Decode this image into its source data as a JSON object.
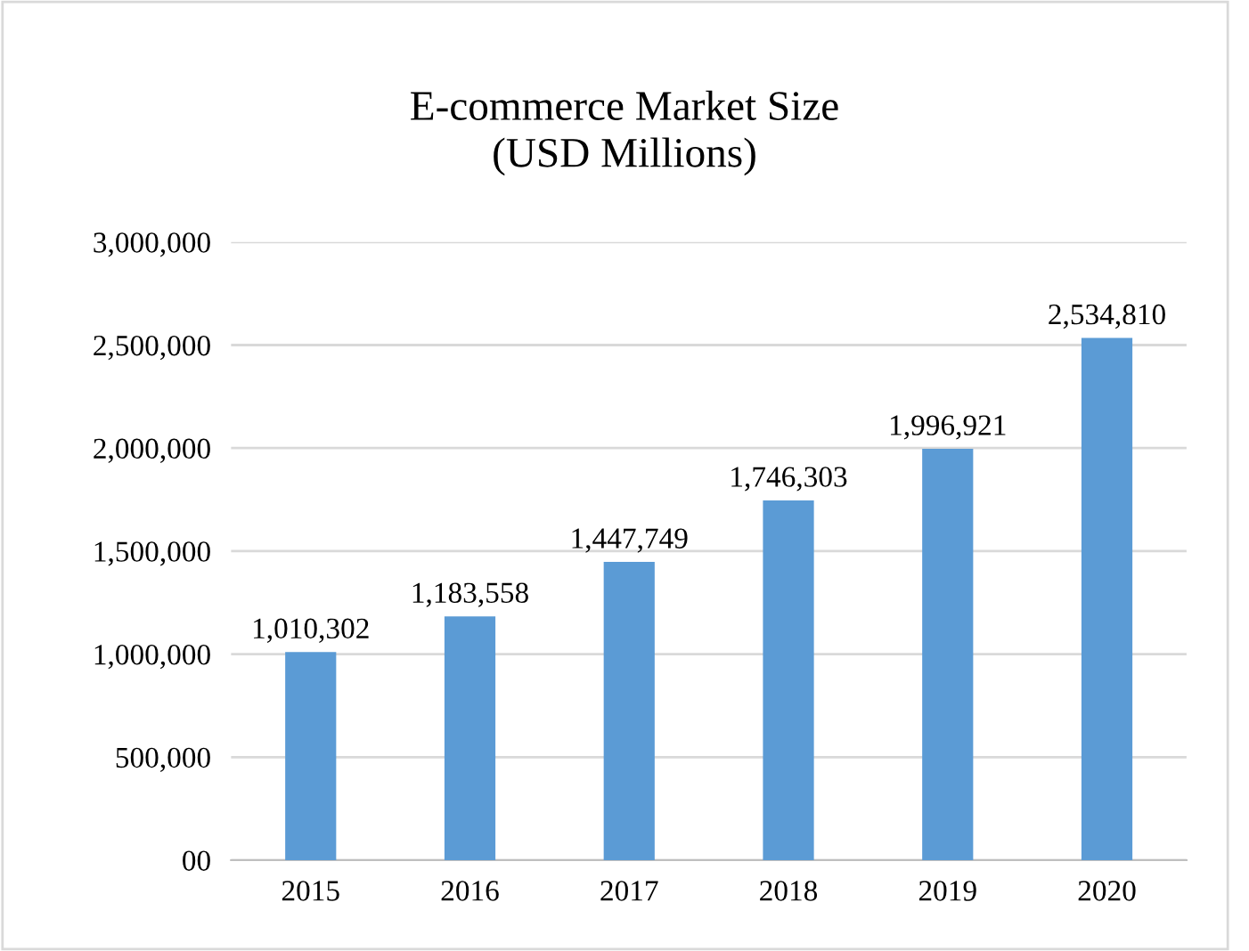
{
  "chart_data": {
    "type": "bar",
    "title": "E-commerce Market Size\n(USD Millions)",
    "categories": [
      "2015",
      "2016",
      "2017",
      "2018",
      "2019",
      "2020"
    ],
    "values": [
      1010302,
      1183558,
      1447749,
      1746303,
      1996921,
      2534810
    ],
    "color": "#5b9bd5",
    "ylim": [
      0,
      3000000
    ],
    "yticks": [
      {
        "value": 0,
        "label": "00"
      },
      {
        "value": 500000,
        "label": "500,000"
      },
      {
        "value": 1000000,
        "label": "1,000,000"
      },
      {
        "value": 1500000,
        "label": "1,500,000"
      },
      {
        "value": 2000000,
        "label": "2,000,000"
      },
      {
        "value": 2500000,
        "label": "2,500,000"
      },
      {
        "value": 3000000,
        "label": "3,000,000"
      }
    ],
    "grid": "y",
    "value_labels": [
      "1,010,302",
      "1,183,558",
      "1,447,749",
      "1,746,303",
      "1,996,921",
      "2,534,810"
    ]
  }
}
